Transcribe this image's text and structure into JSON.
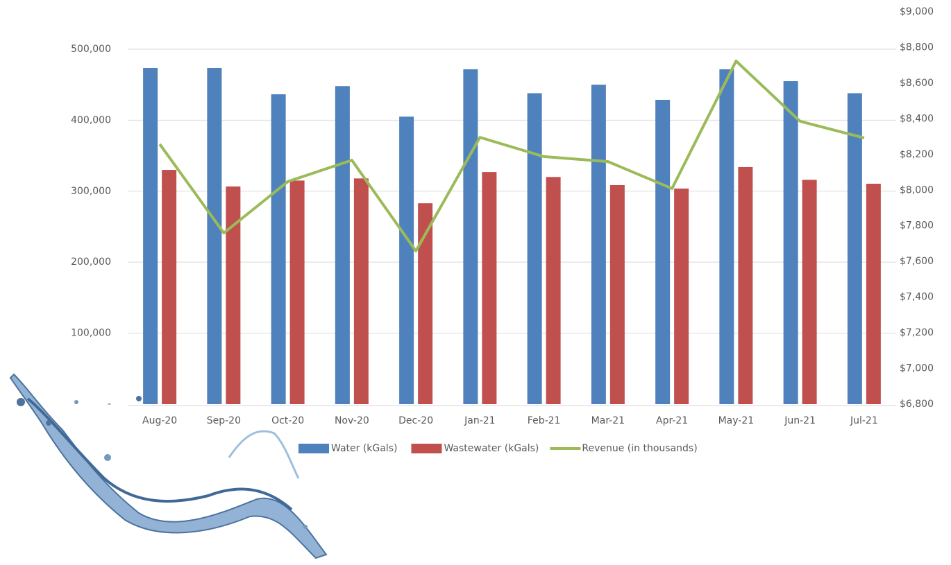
{
  "chart_data": {
    "type": "bar-line",
    "categories": [
      "Aug-20",
      "Sep-20",
      "Oct-20",
      "Nov-20",
      "Dec-20",
      "Jan-21",
      "Feb-21",
      "Mar-21",
      "Apr-21",
      "May-21",
      "Jun-21",
      "Jul-21"
    ],
    "series": [
      {
        "name": "Water (kGals)",
        "color": "#4f81bd",
        "kind": "bar",
        "values": [
          473600,
          473600,
          436500,
          448000,
          405000,
          471700,
          438000,
          450000,
          428700,
          471700,
          455000,
          438000
        ]
      },
      {
        "name": "Wastewater (kGals)",
        "color": "#c0504d",
        "kind": "bar",
        "values": [
          330000,
          306600,
          315000,
          318000,
          283000,
          327000,
          320000,
          308600,
          303700,
          334000,
          316000,
          310500
        ]
      },
      {
        "name": "Revenue (in thousands)",
        "color": "#9bbb59",
        "kind": "line",
        "axis": "y2",
        "values": [
          8258,
          7760,
          8048,
          8168,
          7659,
          8296,
          8188,
          8160,
          8009,
          8724,
          8386,
          8293
        ]
      }
    ],
    "ylim": [
      0,
      552700
    ],
    "yticks": [
      {
        "value": 0,
        "label": "-"
      },
      {
        "value": 100000,
        "label": "100,000"
      },
      {
        "value": 200000,
        "label": "200,000"
      },
      {
        "value": 300000,
        "label": "300,000"
      },
      {
        "value": 400000,
        "label": "400,000"
      },
      {
        "value": 500000,
        "label": "500,000"
      }
    ],
    "y2lim": [
      6800,
      9000
    ],
    "y2ticks": [
      {
        "value": 6800,
        "label": "$6,800"
      },
      {
        "value": 7000,
        "label": "$7,000"
      },
      {
        "value": 7200,
        "label": "$7,200"
      },
      {
        "value": 7400,
        "label": "$7,400"
      },
      {
        "value": 7600,
        "label": "$7,600"
      },
      {
        "value": 7800,
        "label": "$7,800"
      },
      {
        "value": 8000,
        "label": "$8,000"
      },
      {
        "value": 8200,
        "label": "$8,200"
      },
      {
        "value": 8400,
        "label": "$8,400"
      },
      {
        "value": 8600,
        "label": "$8,600"
      },
      {
        "value": 8800,
        "label": "$8,800"
      },
      {
        "value": 9000,
        "label": "$9,000"
      }
    ],
    "grid": true
  }
}
